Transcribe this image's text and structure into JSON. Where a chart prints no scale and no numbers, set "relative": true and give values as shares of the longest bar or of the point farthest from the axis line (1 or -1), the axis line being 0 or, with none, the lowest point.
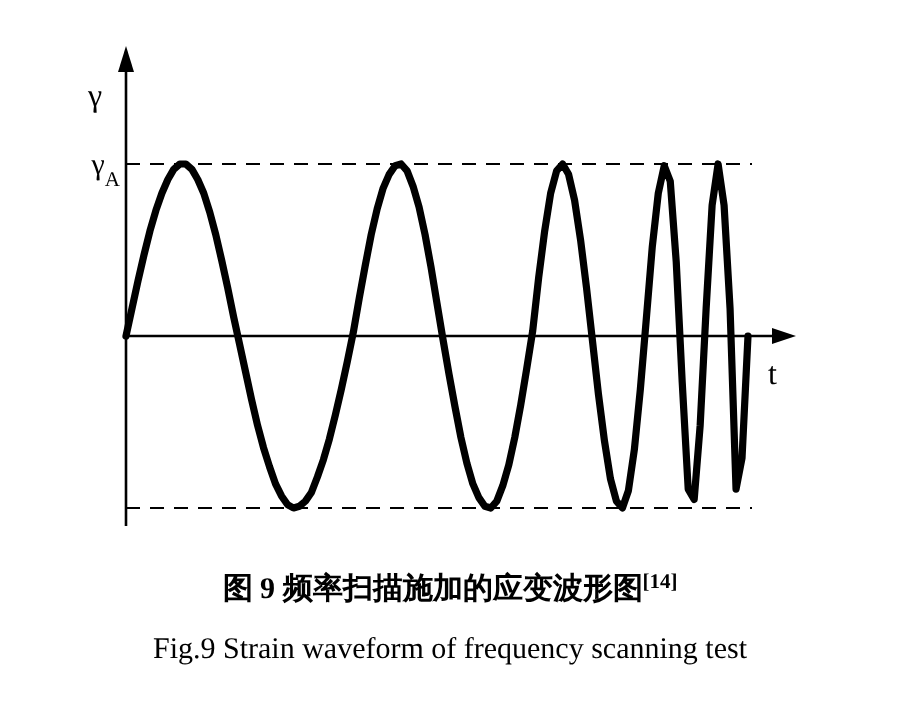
{
  "chart_data": {
    "type": "line",
    "title": "图 9  频率扫描施加的应变波形图$^{[14]}$",
    "subtitle": "Fig.9 Strain waveform of frequency scanning test",
    "xlabel": "t",
    "ylabel": "γ",
    "relative": true,
    "ref_lines": [
      {
        "axis": "y",
        "value": 1,
        "label": "γ$_{A}$",
        "line_style": "dashed",
        "color": "#000000"
      },
      {
        "axis": "y",
        "value": -1,
        "line_style": "dashed",
        "color": "#000000"
      }
    ],
    "categories": [
      null,
      null,
      null,
      null,
      null,
      null,
      null,
      null,
      null,
      null,
      null,
      null,
      null,
      null,
      null,
      null,
      null,
      null,
      null,
      null,
      null,
      null,
      null,
      null,
      null,
      null,
      null,
      null,
      null,
      null,
      null,
      null,
      null,
      null,
      null,
      null,
      null,
      null,
      null,
      null,
      null,
      null,
      null,
      null,
      null,
      null,
      null,
      null,
      null,
      null,
      null,
      null,
      null,
      null,
      null,
      null,
      null,
      null,
      null,
      null,
      null,
      null,
      null,
      null,
      null,
      null,
      null,
      null,
      null,
      null,
      null,
      null,
      null,
      null,
      null,
      null,
      null,
      null,
      null,
      null,
      null,
      null,
      null,
      null,
      null,
      null,
      null,
      null,
      null,
      null,
      null,
      null,
      null,
      null,
      null,
      null,
      null,
      null,
      null,
      null,
      null,
      null,
      null,
      null,
      null
    ],
    "series": [
      {
        "color": "#000000",
        "line_style": "solid",
        "values": [
          0,
          0.16,
          0.32,
          0.47,
          0.61,
          0.73,
          0.83,
          0.91,
          0.97,
          1.0,
          1.0,
          0.97,
          0.91,
          0.83,
          0.72,
          0.59,
          0.44,
          0.28,
          0.11,
          -0.05,
          -0.21,
          -0.37,
          -0.52,
          -0.65,
          -0.76,
          -0.86,
          -0.93,
          -0.98,
          -1.0,
          -0.99,
          -0.96,
          -0.91,
          -0.82,
          -0.72,
          -0.6,
          -0.46,
          -0.31,
          -0.15,
          0.02,
          0.22,
          0.41,
          0.59,
          0.74,
          0.86,
          0.94,
          0.99,
          1.0,
          0.96,
          0.87,
          0.75,
          0.59,
          0.4,
          0.19,
          -0.02,
          -0.22,
          -0.41,
          -0.59,
          -0.74,
          -0.86,
          -0.94,
          -0.99,
          -1.0,
          -0.96,
          -0.87,
          -0.75,
          -0.59,
          -0.4,
          -0.19,
          0.03,
          0.34,
          0.61,
          0.83,
          0.96,
          1.0,
          0.94,
          0.79,
          0.56,
          0.28,
          -0.03,
          -0.34,
          -0.61,
          -0.83,
          -0.96,
          -1.0,
          -0.9,
          -0.66,
          -0.31,
          0.1,
          0.52,
          0.83,
          0.99,
          0.9,
          0.43,
          -0.27,
          -0.89,
          -0.95,
          -0.52,
          0.16,
          0.76,
          1.0,
          0.76,
          0.16,
          -0.89,
          -0.71,
          0
        ]
      }
    ]
  }
}
